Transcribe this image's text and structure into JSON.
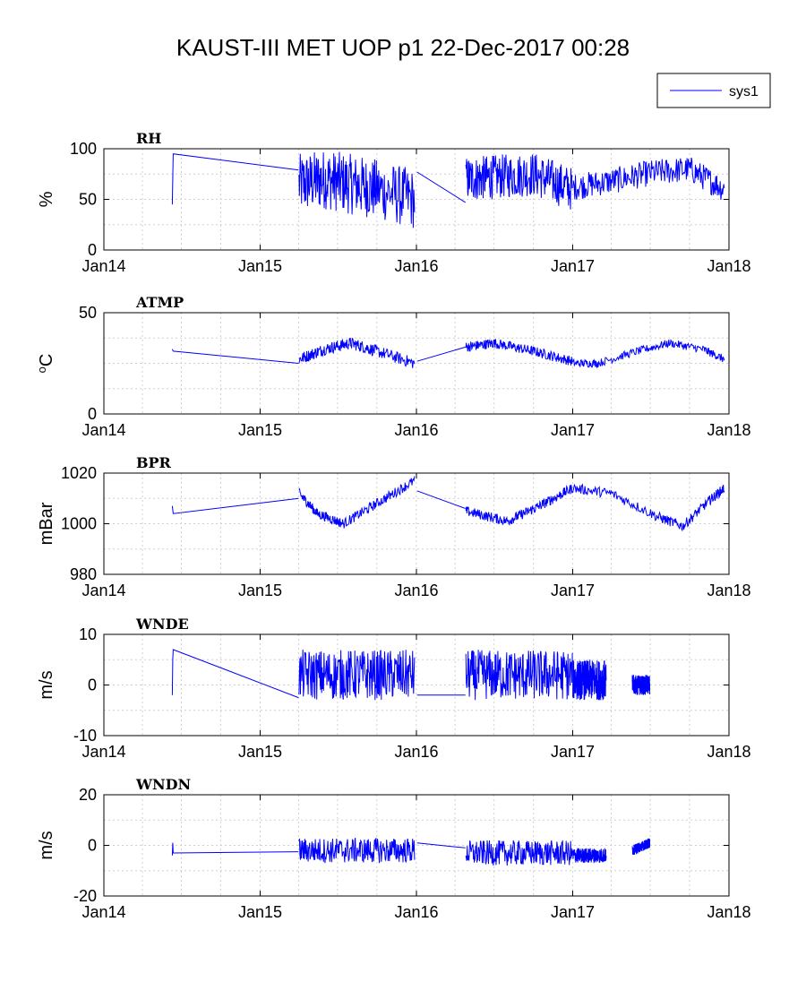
{
  "page_title": "KAUST-III MET UOP p1 22-Dec-2017 00:28",
  "legend": {
    "entries": [
      "sys1"
    ],
    "placement": "top-right",
    "line_color": "#0000ff"
  },
  "x_ticks": [
    "Jan14",
    "Jan15",
    "Jan16",
    "Jan17",
    "Jan18"
  ],
  "chart_data": [
    {
      "type": "line",
      "title": "RH",
      "ylabel": "%",
      "ylabel_sup": "",
      "xlim": [
        "2014-01-01",
        "2018-01-01"
      ],
      "ylim": [
        0,
        100
      ],
      "yticks": [
        "0",
        "50",
        "100"
      ],
      "grid": true,
      "series": [
        {
          "name": "sys1",
          "color": "#0000ff",
          "segments": [
            {
              "x": [
                "2014-06-10",
                "2014-06-11",
                "2014-06-12",
                "2015-04-01"
              ],
              "y": [
                45,
                70,
                95,
                79
              ]
            },
            {
              "x": [
                "2015-04-02",
                "2015-06-01",
                "2015-08-01",
                "2015-10-01",
                "2015-12-28"
              ],
              "y": [
                65,
                70,
                65,
                60,
                50
              ],
              "noise": 30
            },
            {
              "x": [
                "2016-01-03",
                "2016-04-25"
              ],
              "y": [
                77,
                47
              ]
            },
            {
              "x": [
                "2016-04-26",
                "2016-07-01",
                "2016-10-01",
                "2016-12-31"
              ],
              "y": [
                70,
                72,
                75,
                60
              ],
              "noise": 22
            },
            {
              "x": [
                "2017-01-01",
                "2017-04-01",
                "2017-07-01",
                "2017-10-01",
                "2017-12-21"
              ],
              "y": [
                62,
                68,
                76,
                80,
                60
              ],
              "noise": 13
            }
          ]
        }
      ]
    },
    {
      "type": "line",
      "title": "ATMP",
      "ylabel": "C",
      "ylabel_sup": "o",
      "xlim": [
        "2014-01-01",
        "2018-01-01"
      ],
      "ylim": [
        0,
        50
      ],
      "yticks": [
        "0",
        "50"
      ],
      "grid": true,
      "series": [
        {
          "name": "sys1",
          "color": "#0000ff",
          "segments": [
            {
              "x": [
                "2014-06-10",
                "2014-06-12",
                "2015-04-01"
              ],
              "y": [
                32,
                31,
                25
              ]
            },
            {
              "x": [
                "2015-04-02",
                "2015-06-01",
                "2015-08-01",
                "2015-10-01",
                "2015-12-28"
              ],
              "y": [
                27,
                32,
                35,
                31,
                25
              ],
              "noise": 3
            },
            {
              "x": [
                "2016-01-03",
                "2016-04-25"
              ],
              "y": [
                26,
                33
              ]
            },
            {
              "x": [
                "2016-04-26",
                "2016-07-01",
                "2016-10-01",
                "2016-12-31"
              ],
              "y": [
                33,
                35,
                31,
                26
              ],
              "noise": 2.5
            },
            {
              "x": [
                "2017-01-01",
                "2017-03-01",
                "2017-06-01",
                "2017-08-15",
                "2017-11-01",
                "2017-12-21"
              ],
              "y": [
                25,
                25,
                31,
                35,
                32,
                27
              ],
              "noise": 2
            }
          ]
        }
      ]
    },
    {
      "type": "line",
      "title": "BPR",
      "ylabel": "mBar",
      "ylabel_sup": "",
      "xlim": [
        "2014-01-01",
        "2018-01-01"
      ],
      "ylim": [
        980,
        1020
      ],
      "yticks": [
        "980",
        "1000",
        "1020"
      ],
      "grid": true,
      "series": [
        {
          "name": "sys1",
          "color": "#0000ff",
          "segments": [
            {
              "x": [
                "2014-06-10",
                "2014-06-12",
                "2015-04-01"
              ],
              "y": [
                1007,
                1004,
                1010
              ]
            },
            {
              "x": [
                "2015-04-02",
                "2015-05-15",
                "2015-07-15",
                "2015-10-01",
                "2015-12-28"
              ],
              "y": [
                1012,
                1004,
                1000,
                1008,
                1017
              ],
              "noise": 2
            },
            {
              "x": [
                "2016-01-03",
                "2016-04-25"
              ],
              "y": [
                1013,
                1006
              ]
            },
            {
              "x": [
                "2016-04-26",
                "2016-08-01",
                "2016-10-15",
                "2016-12-31"
              ],
              "y": [
                1005,
                1001,
                1007,
                1014
              ],
              "noise": 2
            },
            {
              "x": [
                "2017-01-01",
                "2017-04-01",
                "2017-07-15",
                "2017-09-15",
                "2017-11-15",
                "2017-12-21"
              ],
              "y": [
                1014,
                1012,
                1003,
                999,
                1009,
                1014
              ],
              "noise": 2
            }
          ]
        }
      ]
    },
    {
      "type": "line",
      "title": "WNDE",
      "ylabel": "m/s",
      "ylabel_sup": "",
      "xlim": [
        "2014-01-01",
        "2018-01-01"
      ],
      "ylim": [
        -10,
        10
      ],
      "yticks": [
        "-10",
        "0",
        "10"
      ],
      "grid": true,
      "series": [
        {
          "name": "sys1",
          "color": "#0000ff",
          "segments": [
            {
              "x": [
                "2014-06-10",
                "2014-06-11",
                "2014-06-12",
                "2015-04-01"
              ],
              "y": [
                -2,
                5,
                7,
                -2.5
              ]
            },
            {
              "x": [
                "2015-04-02",
                "2015-12-28"
              ],
              "y": [
                2,
                2
              ],
              "noise": 5
            },
            {
              "x": [
                "2016-01-03",
                "2016-04-25"
              ],
              "y": [
                -2,
                -2
              ]
            },
            {
              "x": [
                "2016-04-26",
                "2016-12-31"
              ],
              "y": [
                2,
                2
              ],
              "noise": 5
            },
            {
              "x": [
                "2017-01-01",
                "2017-03-20"
              ],
              "y": [
                1,
                1
              ],
              "noise": 4
            },
            {
              "x": [
                "2017-05-20",
                "2017-06-30"
              ],
              "y": [
                0,
                0
              ],
              "noise": 2
            }
          ]
        }
      ]
    },
    {
      "type": "line",
      "title": "WNDN",
      "ylabel": "m/s",
      "ylabel_sup": "",
      "xlim": [
        "2014-01-01",
        "2018-01-01"
      ],
      "ylim": [
        -20,
        20
      ],
      "yticks": [
        "-20",
        "0",
        "20"
      ],
      "grid": true,
      "series": [
        {
          "name": "sys1",
          "color": "#0000ff",
          "segments": [
            {
              "x": [
                "2014-06-10",
                "2014-06-11",
                "2014-06-12",
                "2015-04-01"
              ],
              "y": [
                -4,
                1,
                -3,
                -2.5
              ]
            },
            {
              "x": [
                "2015-04-02",
                "2015-12-28"
              ],
              "y": [
                -2,
                -2
              ],
              "noise": 5
            },
            {
              "x": [
                "2016-01-03",
                "2016-04-25"
              ],
              "y": [
                1,
                -1
              ]
            },
            {
              "x": [
                "2016-04-26",
                "2016-12-31"
              ],
              "y": [
                -3,
                -3
              ],
              "noise": 5
            },
            {
              "x": [
                "2017-01-01",
                "2017-03-20"
              ],
              "y": [
                -4,
                -4
              ],
              "noise": 3
            },
            {
              "x": [
                "2017-05-20",
                "2017-06-30"
              ],
              "y": [
                -2,
                1
              ],
              "noise": 2
            }
          ]
        }
      ]
    }
  ]
}
